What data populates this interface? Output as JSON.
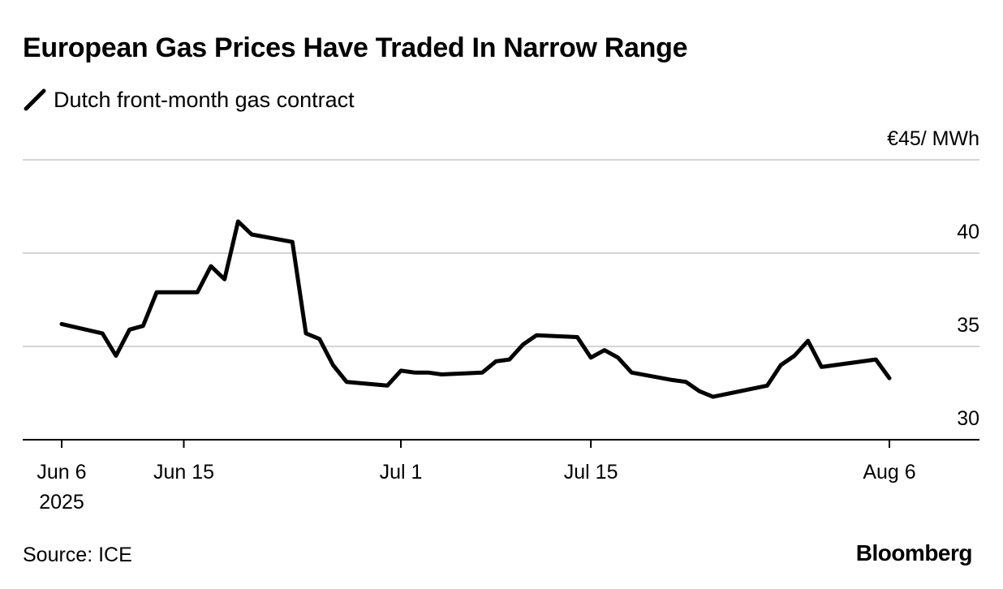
{
  "title": "European Gas Prices Have Traded In Narrow Range",
  "legend": {
    "label": "Dutch front-month gas contract"
  },
  "source": "Source: ICE",
  "brand": "Bloomberg",
  "chart_data": {
    "type": "line",
    "title": "European Gas Prices Have Traded In Narrow Range",
    "unit_label": "€45/ MWh",
    "ylim": [
      30,
      45
    ],
    "yticks": [
      {
        "value": 30,
        "label": "30"
      },
      {
        "value": 35,
        "label": "35"
      },
      {
        "value": 40,
        "label": "40"
      },
      {
        "value": 45,
        "label": "€45/ MWh"
      }
    ],
    "xlim": [
      "2025-06-03",
      "2025-08-11"
    ],
    "xticks": [
      {
        "date": "2025-06-06",
        "label": "Jun 6",
        "sublabel": "2025"
      },
      {
        "date": "2025-06-15",
        "label": "Jun 15"
      },
      {
        "date": "2025-07-01",
        "label": "Jul 1"
      },
      {
        "date": "2025-07-15",
        "label": "Jul 15"
      },
      {
        "date": "2025-08-06",
        "label": "Aug 6"
      }
    ],
    "grid": true,
    "line_color": "#000000",
    "series": [
      {
        "name": "Dutch front-month gas contract",
        "points": [
          [
            "2025-06-06",
            36.2
          ],
          [
            "2025-06-09",
            35.7
          ],
          [
            "2025-06-10",
            34.5
          ],
          [
            "2025-06-11",
            35.9
          ],
          [
            "2025-06-12",
            36.1
          ],
          [
            "2025-06-13",
            37.9
          ],
          [
            "2025-06-16",
            37.9
          ],
          [
            "2025-06-17",
            39.3
          ],
          [
            "2025-06-18",
            38.6
          ],
          [
            "2025-06-19",
            41.7
          ],
          [
            "2025-06-20",
            41.0
          ],
          [
            "2025-06-23",
            40.6
          ],
          [
            "2025-06-24",
            35.7
          ],
          [
            "2025-06-25",
            35.4
          ],
          [
            "2025-06-26",
            34.0
          ],
          [
            "2025-06-27",
            33.1
          ],
          [
            "2025-06-30",
            32.9
          ],
          [
            "2025-07-01",
            33.7
          ],
          [
            "2025-07-02",
            33.6
          ],
          [
            "2025-07-03",
            33.6
          ],
          [
            "2025-07-04",
            33.5
          ],
          [
            "2025-07-07",
            33.6
          ],
          [
            "2025-07-08",
            34.2
          ],
          [
            "2025-07-09",
            34.3
          ],
          [
            "2025-07-10",
            35.1
          ],
          [
            "2025-07-11",
            35.6
          ],
          [
            "2025-07-14",
            35.5
          ],
          [
            "2025-07-15",
            34.4
          ],
          [
            "2025-07-16",
            34.8
          ],
          [
            "2025-07-17",
            34.4
          ],
          [
            "2025-07-18",
            33.6
          ],
          [
            "2025-07-21",
            33.2
          ],
          [
            "2025-07-22",
            33.1
          ],
          [
            "2025-07-23",
            32.6
          ],
          [
            "2025-07-24",
            32.3
          ],
          [
            "2025-07-28",
            32.9
          ],
          [
            "2025-07-29",
            34.0
          ],
          [
            "2025-07-30",
            34.5
          ],
          [
            "2025-07-31",
            35.3
          ],
          [
            "2025-08-01",
            33.9
          ],
          [
            "2025-08-05",
            34.3
          ],
          [
            "2025-08-06",
            33.3
          ]
        ]
      }
    ]
  }
}
